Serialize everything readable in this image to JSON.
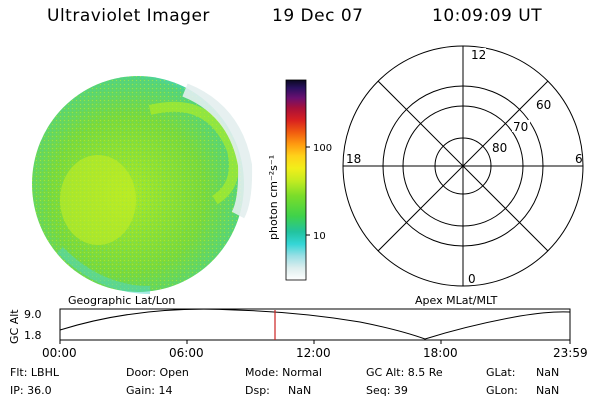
{
  "header": {
    "title": "Ultraviolet Imager",
    "date": "19 Dec 07",
    "time": "10:09:09 UT"
  },
  "colorbar": {
    "unit_label": "photon cm⁻²s⁻¹",
    "ticks": [
      "100",
      "10"
    ]
  },
  "polar": {
    "lat_labels": [
      "80",
      "70",
      "60"
    ],
    "mlt_labels": {
      "top": "12",
      "left": "18",
      "right": "6",
      "bottom": "0"
    }
  },
  "orbit": {
    "left_label": "Geographic Lat/Lon",
    "right_label": "Apex MLat/MLT",
    "ylabel": "GC Alt",
    "yticks": [
      "9.0",
      "1.8"
    ],
    "xticks": [
      "00:00",
      "06:00",
      "12:00",
      "18:00",
      "23:59"
    ]
  },
  "info": {
    "flt": "Flt: LBHL",
    "ip": "IP: 36.0",
    "door": "Door: Open",
    "gain": "Gain: 14",
    "mode": "Mode: Normal",
    "dsp": "Dsp:",
    "dsp_val": "NaN",
    "gcalt": "GC Alt: 8.5 Re",
    "seq": "Seq: 39",
    "glat": "GLat:",
    "glat_val": "NaN",
    "glon": "GLon:",
    "glon_val": "NaN"
  },
  "colors": {
    "earth_main": "#7fdd3a",
    "earth_bright": "#c8ee22",
    "earth_edge": "#3fd6d6",
    "marker": "#cc2222"
  }
}
